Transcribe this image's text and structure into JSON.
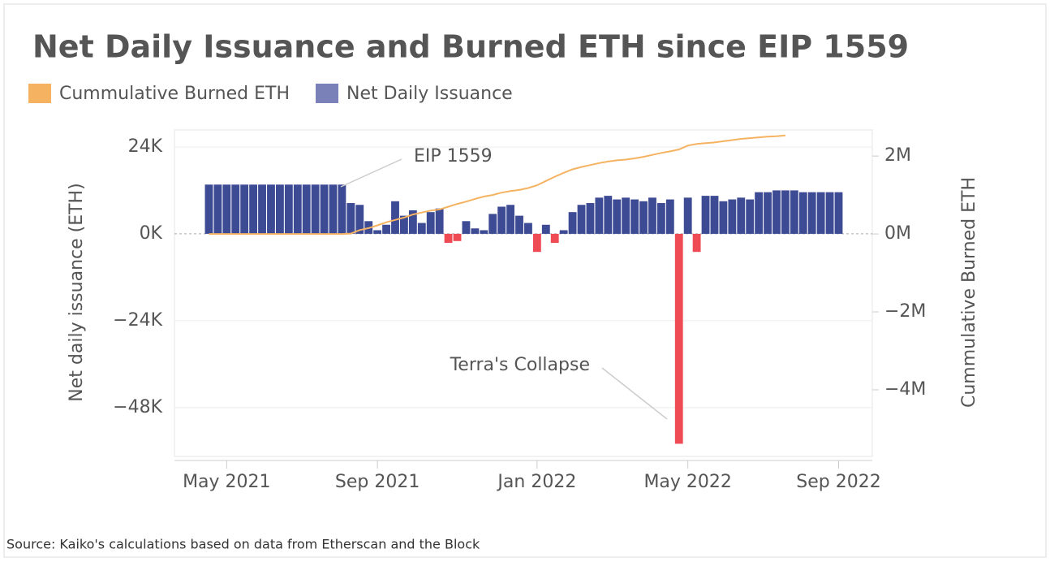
{
  "chart_data": {
    "type": "bar_line",
    "title": "Net Daily Issuance and Burned ETH since EIP 1559",
    "y_label": "Net daily issuance (ETH)",
    "y2_label": "Cummulative Burned ETH",
    "source": "Source: Kaiko's calculations based on data from Etherscan and the Block",
    "annotations": [
      "EIP 1559",
      "Terra's Collapse"
    ],
    "categories": [
      null,
      null,
      "May 2021",
      null,
      null,
      null,
      null,
      null,
      null,
      null,
      null,
      null,
      null,
      null,
      null,
      null,
      null,
      null,
      null,
      "Sep 2021",
      null,
      null,
      null,
      null,
      null,
      null,
      null,
      null,
      null,
      null,
      null,
      null,
      null,
      null,
      null,
      null,
      null,
      "Jan 2022",
      null,
      null,
      null,
      null,
      null,
      null,
      null,
      null,
      null,
      null,
      null,
      null,
      null,
      null,
      null,
      null,
      "May 2022",
      null,
      null,
      null,
      null,
      null,
      null,
      null,
      null,
      null,
      null,
      null,
      null,
      null,
      null,
      null,
      null,
      "Sep 2022"
    ],
    "series": [
      {
        "name": "Net Daily Issuance",
        "type": "bar",
        "color": "#3d4a94",
        "negative_color": "#ee4b55",
        "legend_color": "#7a80b8",
        "values": [
          13600,
          13600,
          13600,
          13600,
          13600,
          13600,
          13600,
          13600,
          13600,
          13600,
          13600,
          13600,
          13600,
          13600,
          13600,
          13600,
          8500,
          8000,
          3500,
          1000,
          2500,
          9000,
          5000,
          6500,
          3000,
          6000,
          7000,
          -2500,
          -2000,
          3500,
          1500,
          1000,
          5500,
          7500,
          8000,
          5000,
          3000,
          -5000,
          2500,
          -2500,
          1000,
          6000,
          8000,
          8500,
          10000,
          10500,
          9500,
          10000,
          9500,
          9000,
          10000,
          8500,
          9500,
          -58000,
          10000,
          -5000,
          10500,
          10500,
          9000,
          9500,
          10000,
          9500,
          11500,
          11500,
          12000,
          12000,
          12000,
          11500,
          11500,
          11500,
          11500,
          11500
        ]
      },
      {
        "name": "Cummulative Burned ETH",
        "type": "line",
        "axis": "y2",
        "color": "#f5b362",
        "values": [
          0,
          0,
          0,
          0,
          0,
          0,
          0,
          0,
          0,
          0,
          0,
          0,
          0,
          0,
          0,
          0,
          10000,
          100000,
          150000,
          220000,
          300000,
          360000,
          420000,
          500000,
          550000,
          600000,
          630000,
          700000,
          770000,
          830000,
          900000,
          960000,
          1000000,
          1060000,
          1100000,
          1130000,
          1180000,
          1250000,
          1360000,
          1470000,
          1570000,
          1660000,
          1720000,
          1770000,
          1820000,
          1860000,
          1890000,
          1910000,
          1940000,
          1980000,
          2030000,
          2080000,
          2120000,
          2170000,
          2270000,
          2310000,
          2330000,
          2350000,
          2380000,
          2410000,
          2440000,
          2460000,
          2480000,
          2500000,
          2510000,
          2530000,
          null,
          null,
          null,
          null,
          null,
          null
        ]
      }
    ],
    "ylim": [
      -61500,
      28700
    ],
    "yticks": [
      {
        "value": 24000,
        "label": "24K"
      },
      {
        "value": 0,
        "label": "0K"
      },
      {
        "value": -24000,
        "label": "−24K"
      },
      {
        "value": -48000,
        "label": "−48K"
      }
    ],
    "y2lim": [
      -5710000,
      2670000
    ],
    "y2ticks": [
      {
        "value": 2000000,
        "label": "2M"
      },
      {
        "value": 0,
        "label": "0M"
      },
      {
        "value": -2000000,
        "label": "−2M"
      },
      {
        "value": -4000000,
        "label": "−4M"
      }
    ],
    "grid": true,
    "legend": "top-left"
  }
}
